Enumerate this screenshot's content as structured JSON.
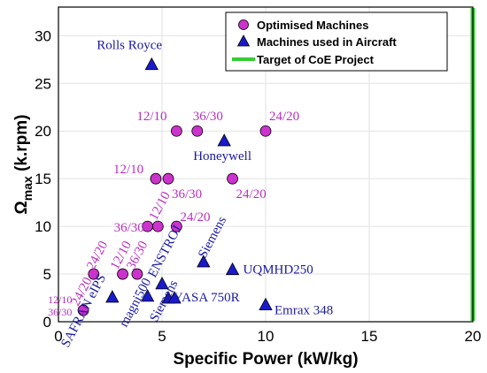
{
  "chart_data": {
    "type": "scatter",
    "xlabel": "Specific Power (kW/kg)",
    "ylabel": "Ω",
    "ylabel_sub": "max",
    "ylabel_unit": " (k.rpm)",
    "xlim": [
      0,
      20
    ],
    "ylim": [
      0,
      33
    ],
    "xticks": [
      0,
      5,
      10,
      15,
      20
    ],
    "yticks": [
      0,
      5,
      10,
      15,
      20,
      25,
      30
    ],
    "grid": true,
    "legend_position": "top-right",
    "series": [
      {
        "name": "Optimised Machines",
        "marker": "circle",
        "color": "#cc33cc",
        "label_color": "#b82fc0",
        "points": [
          {
            "x": 5.7,
            "y": 20,
            "label": "12/10"
          },
          {
            "x": 6.7,
            "y": 20,
            "label": "36/30"
          },
          {
            "x": 10.0,
            "y": 20,
            "label": "24/20"
          },
          {
            "x": 4.7,
            "y": 15,
            "label": "12/10"
          },
          {
            "x": 5.3,
            "y": 15,
            "label": "36/30"
          },
          {
            "x": 8.4,
            "y": 15,
            "label": "24/20"
          },
          {
            "x": 4.3,
            "y": 10,
            "label": "36/30"
          },
          {
            "x": 4.8,
            "y": 10,
            "label": "12/10"
          },
          {
            "x": 5.7,
            "y": 10,
            "label": "24/20"
          },
          {
            "x": 1.7,
            "y": 5,
            "label": "24/20"
          },
          {
            "x": 3.1,
            "y": 5,
            "label": "12/10"
          },
          {
            "x": 3.8,
            "y": 5,
            "label": "36/30"
          },
          {
            "x": 1.2,
            "y": 1.2,
            "label": "36/30"
          }
        ]
      },
      {
        "name": "Machines used in Aircraft",
        "marker": "triangle",
        "color": "#1a1acc",
        "label_color": "#1a1aa0",
        "points": [
          {
            "x": 4.5,
            "y": 27,
            "label": "Rolls Royce"
          },
          {
            "x": 8.0,
            "y": 19,
            "label": "Honeywell"
          },
          {
            "x": 7.0,
            "y": 6.3,
            "label": "Siemens"
          },
          {
            "x": 8.4,
            "y": 5.5,
            "label": "UQMHD250"
          },
          {
            "x": 5.0,
            "y": 4.0,
            "label": "ENSTROJ"
          },
          {
            "x": 5.3,
            "y": 2.5,
            "label": "YASA 750R"
          },
          {
            "x": 5.6,
            "y": 2.5,
            "label": "Siemens"
          },
          {
            "x": 4.3,
            "y": 2.7,
            "label": "magni500"
          },
          {
            "x": 2.6,
            "y": 2.6,
            "label": "SAFRAN eIPS"
          },
          {
            "x": 10.0,
            "y": 1.8,
            "label": "Emrax 348"
          }
        ]
      },
      {
        "name": "Target of CoE Project",
        "marker": "line",
        "color": "#33cc33",
        "x": 20
      }
    ],
    "annotations": [
      {
        "text": "12/10",
        "x": 1.2,
        "y": 1.2
      },
      {
        "text": "24/20",
        "x": 1.2,
        "y": 1.2
      }
    ]
  }
}
